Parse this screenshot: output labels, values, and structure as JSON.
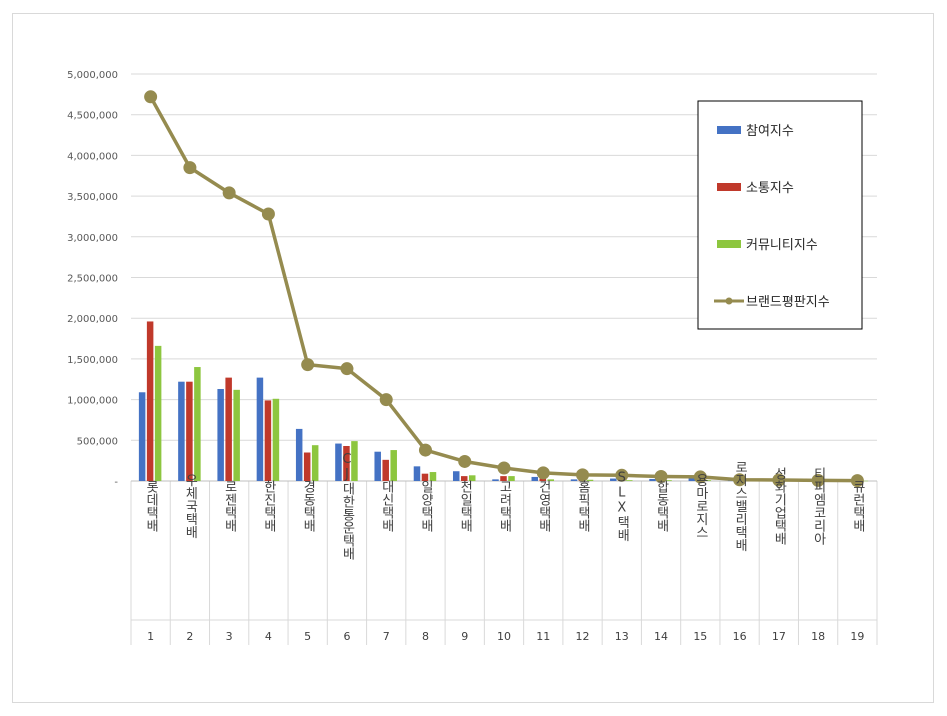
{
  "chart_data": {
    "type": "bar",
    "y_ticks": [
      "-",
      "500,000",
      "1,000,000",
      "1,500,000",
      "2,000,000",
      "2,500,000",
      "3,000,000",
      "3,500,000",
      "4,000,000",
      "4,500,000",
      "5,000,000"
    ],
    "ylim": [
      0,
      5000000
    ],
    "grid": true,
    "legend_position": "top-right",
    "categories": [
      "롯데택배",
      "우체국택배",
      "로젠택배",
      "한진택배",
      "경동택배",
      "CJ대한통운택배",
      "대신택배",
      "일양택배",
      "천일택배",
      "고려택배",
      "건영택배",
      "홈픽택배",
      "SLX택배",
      "합동택배",
      "용마로지스",
      "로지스밸리택배",
      "성화기업택배",
      "티피엠코리아",
      "큐런택배"
    ],
    "ranks": [
      "1",
      "2",
      "3",
      "4",
      "5",
      "6",
      "7",
      "8",
      "9",
      "10",
      "11",
      "12",
      "13",
      "14",
      "15",
      "16",
      "17",
      "18",
      "19"
    ],
    "series": [
      {
        "name": "참여지수",
        "kind": "bar",
        "color": "#4472C4",
        "values": [
          1090000,
          1220000,
          1130000,
          1270000,
          640000,
          460000,
          360000,
          180000,
          120000,
          20000,
          50000,
          20000,
          30000,
          25000,
          40000,
          5000,
          5000,
          3000,
          3000
        ]
      },
      {
        "name": "소통지수",
        "kind": "bar",
        "color": "#C0392B",
        "values": [
          1960000,
          1220000,
          1270000,
          990000,
          350000,
          430000,
          260000,
          90000,
          60000,
          60000,
          30000,
          15000,
          15000,
          10000,
          15000,
          5000,
          5000,
          3000,
          3000
        ]
      },
      {
        "name": "커뮤니티지수",
        "kind": "bar",
        "color": "#8DC63F",
        "values": [
          1660000,
          1400000,
          1120000,
          1010000,
          440000,
          490000,
          380000,
          110000,
          70000,
          60000,
          20000,
          15000,
          10000,
          10000,
          10000,
          5000,
          5000,
          3000,
          3000
        ]
      },
      {
        "name": "브랜드평판지수",
        "kind": "line",
        "color": "#958B4F",
        "values": [
          4720000,
          3850000,
          3540000,
          3280000,
          1430000,
          1380000,
          1000000,
          380000,
          240000,
          160000,
          100000,
          75000,
          70000,
          55000,
          50000,
          15000,
          12000,
          8000,
          5000
        ]
      }
    ]
  }
}
